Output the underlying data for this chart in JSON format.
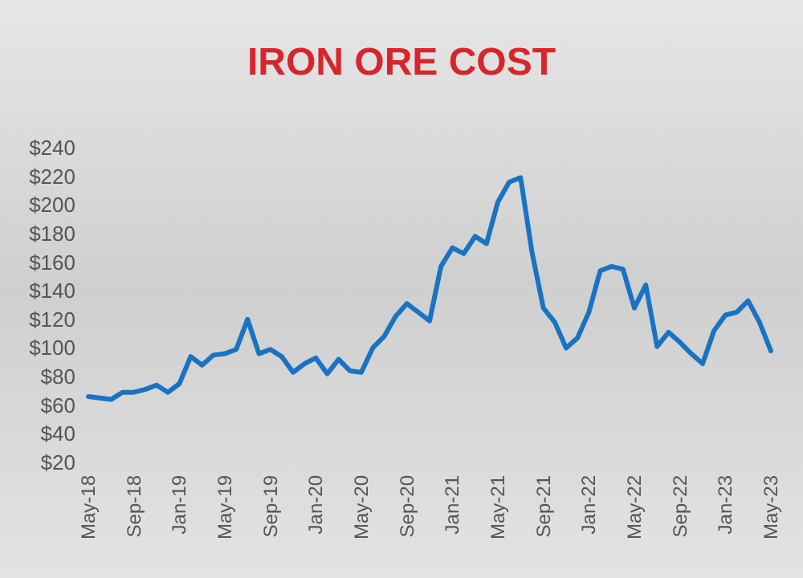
{
  "chart_data": {
    "type": "line",
    "title": "IRON ORE COST",
    "categories": [
      "May-18",
      null,
      null,
      null,
      "Sep-18",
      null,
      null,
      null,
      "Jan-19",
      null,
      null,
      null,
      "May-19",
      null,
      null,
      null,
      "Sep-19",
      null,
      null,
      null,
      "Jan-20",
      null,
      null,
      null,
      "May-20",
      null,
      null,
      null,
      "Sep-20",
      null,
      null,
      null,
      "Jan-21",
      null,
      null,
      null,
      "May-21",
      null,
      null,
      null,
      "Sep-21",
      null,
      null,
      null,
      "Jan-22",
      null,
      null,
      null,
      "May-22",
      null,
      null,
      null,
      "Sep-22",
      null,
      null,
      null,
      "Jan-23",
      null,
      null,
      null,
      "May-23"
    ],
    "series": [
      {
        "color": "#1a73c2",
        "values": [
          66,
          65,
          64,
          69,
          69,
          71,
          74,
          69,
          75,
          94,
          88,
          95,
          96,
          99,
          120,
          96,
          99,
          94,
          83,
          89,
          93,
          82,
          92,
          84,
          83,
          100,
          108,
          122,
          131,
          125,
          119,
          157,
          170,
          166,
          178,
          173,
          202,
          216,
          219,
          167,
          128,
          118,
          100,
          107,
          125,
          154,
          157,
          155,
          128,
          144,
          101,
          111,
          104,
          96,
          89,
          112,
          123,
          125,
          133,
          118,
          98
        ]
      }
    ],
    "ylim": [
      20,
      240
    ],
    "yticks": [
      {
        "value": 20,
        "label": "$20"
      },
      {
        "value": 40,
        "label": "$40"
      },
      {
        "value": 60,
        "label": "$60"
      },
      {
        "value": 80,
        "label": "$80"
      },
      {
        "value": 100,
        "label": "$100"
      },
      {
        "value": 120,
        "label": "$120"
      },
      {
        "value": 140,
        "label": "$140"
      },
      {
        "value": 160,
        "label": "$160"
      },
      {
        "value": 180,
        "label": "$180"
      },
      {
        "value": 200,
        "label": "$200"
      },
      {
        "value": 220,
        "label": "$220"
      },
      {
        "value": 240,
        "label": "$240"
      }
    ],
    "grid": false,
    "marker": "none",
    "line_style": "solid"
  }
}
